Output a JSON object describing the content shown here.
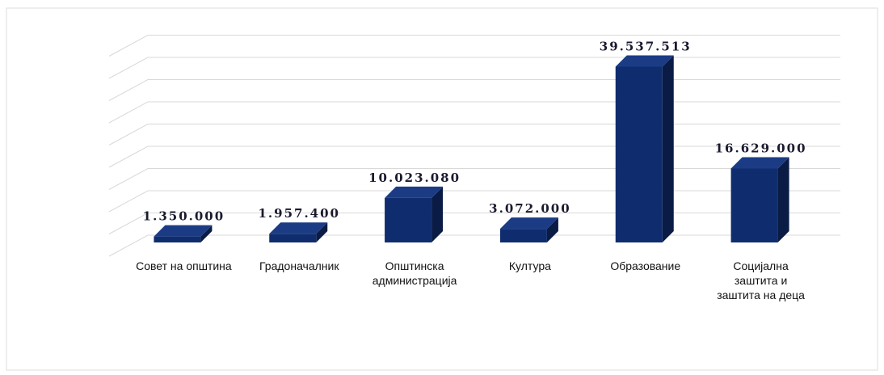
{
  "chart_data": {
    "type": "bar",
    "categories": [
      "Совет на општина",
      "Градоначалник",
      "Општинска администрација",
      "Култура",
      "Образование",
      "Социјална заштита и заштита на деца"
    ],
    "values": [
      1350000,
      1957400,
      10023080,
      3072000,
      39537513,
      16629000
    ],
    "value_labels": [
      "1.350.000",
      "1.957.400",
      "10.023.080",
      "3.072.000",
      "39.537.513",
      "16.629.000"
    ],
    "color": "#0f2d6e",
    "ylim": [
      0,
      45000000
    ],
    "yticks": [
      0,
      5000000,
      10000000,
      15000000,
      20000000,
      25000000,
      30000000,
      35000000,
      40000000,
      45000000
    ],
    "grid": true
  }
}
